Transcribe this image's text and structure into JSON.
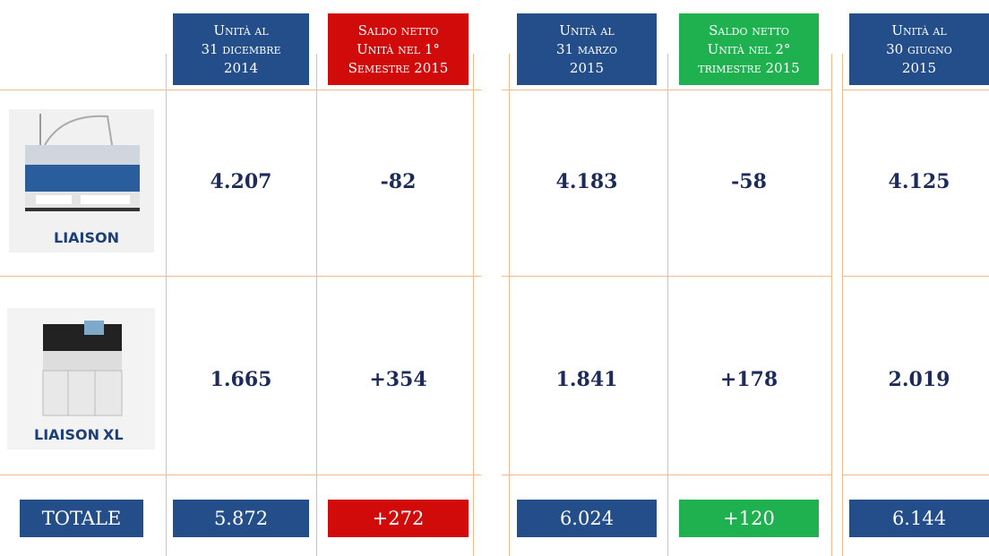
{
  "header": {
    "columns": [
      {
        "lines": [
          "Unità al",
          "31 dicembre",
          "2014"
        ]
      },
      {
        "lines": [
          "Saldo netto",
          "Unità nel 1°",
          "Semestre 2015"
        ]
      },
      {
        "lines": [
          "Unità al",
          "31 marzo",
          "2015"
        ]
      },
      {
        "lines": [
          "Saldo netto",
          "Unità nel 2°",
          "trimestre 2015"
        ]
      },
      {
        "lines": [
          "Unità al",
          "30 giugno",
          "2015"
        ]
      }
    ]
  },
  "rows": [
    {
      "logo": "LIAISON",
      "values": [
        "4.207",
        "-82",
        "4.183",
        "-58",
        "4.125"
      ]
    },
    {
      "logo": "LIAISON",
      "logo_suffix": "XL",
      "values": [
        "1.665",
        "+354",
        "1.841",
        "+178",
        "2.019"
      ]
    }
  ],
  "total": {
    "label": "TOTALE",
    "values": [
      "5.872",
      "+272",
      "6.024",
      "+120",
      "6.144"
    ]
  }
}
